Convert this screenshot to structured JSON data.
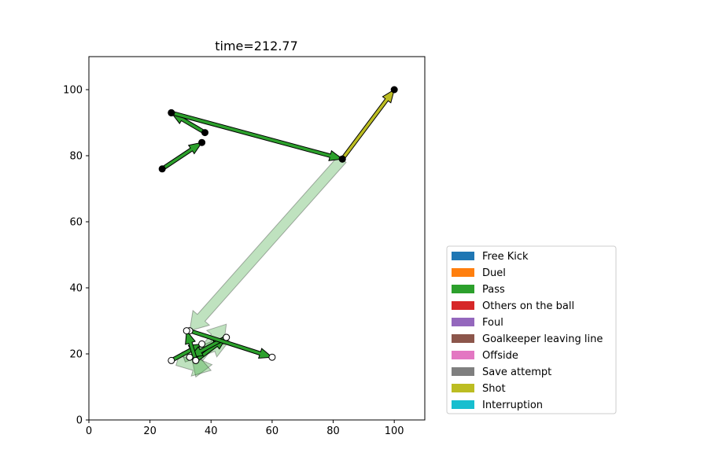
{
  "chart_data": {
    "type": "scatter",
    "title": "time=212.77",
    "xlabel": "",
    "ylabel": "",
    "xlim": [
      0,
      110
    ],
    "ylim": [
      0,
      110
    ],
    "xticks": [
      0,
      20,
      40,
      60,
      80,
      100
    ],
    "yticks": [
      0,
      20,
      40,
      60,
      80,
      100
    ],
    "grid": false,
    "legend_position": "lower-right, outside plot",
    "legend": [
      {
        "label": "Free Kick",
        "color": "#1f77b4"
      },
      {
        "label": "Duel",
        "color": "#ff7f0e"
      },
      {
        "label": "Pass",
        "color": "#2ca02c"
      },
      {
        "label": "Others on the ball",
        "color": "#d62728"
      },
      {
        "label": "Foul",
        "color": "#9467bd"
      },
      {
        "label": "Goalkeeper leaving line",
        "color": "#8c564b"
      },
      {
        "label": "Offside",
        "color": "#e377c2"
      },
      {
        "label": "Save attempt",
        "color": "#7f7f7f"
      },
      {
        "label": "Shot",
        "color": "#bcbd22"
      },
      {
        "label": "Interruption",
        "color": "#17becf"
      }
    ],
    "faded_events": [
      {
        "event": "Pass",
        "from": [
          83,
          79
        ],
        "to": [
          33,
          27
        ]
      },
      {
        "event": "Pass",
        "from": [
          37,
          18
        ],
        "to": [
          35,
          13
        ]
      },
      {
        "event": "Pass",
        "from": [
          29,
          18
        ],
        "to": [
          40,
          15
        ]
      },
      {
        "event": "Pass",
        "from": [
          36,
          19
        ],
        "to": [
          45,
          29
        ]
      },
      {
        "event": "Pass",
        "from": [
          31,
          19
        ],
        "to": [
          46,
          24
        ]
      }
    ],
    "team_b_events": [
      {
        "event": "Pass",
        "from": [
          27,
          18
        ],
        "to": [
          37,
          23
        ]
      },
      {
        "event": "Pass",
        "from": [
          35,
          18
        ],
        "to": [
          45,
          25
        ]
      },
      {
        "event": "Pass",
        "from": [
          45,
          25
        ],
        "to": [
          33,
          19
        ]
      },
      {
        "event": "Pass",
        "from": [
          33,
          27
        ],
        "to": [
          60,
          19
        ]
      },
      {
        "event": "Pass",
        "from": [
          35,
          18
        ],
        "to": [
          32,
          27
        ]
      }
    ],
    "team_a_events": [
      {
        "event": "Pass",
        "from": [
          24,
          76
        ],
        "to": [
          37,
          84
        ]
      },
      {
        "event": "Pass",
        "from": [
          38,
          87
        ],
        "to": [
          27,
          93
        ]
      },
      {
        "event": "Pass",
        "from": [
          27,
          93
        ],
        "to": [
          83,
          79
        ]
      },
      {
        "event": "Shot",
        "from": [
          83,
          79
        ],
        "to": [
          100,
          100
        ]
      }
    ]
  }
}
